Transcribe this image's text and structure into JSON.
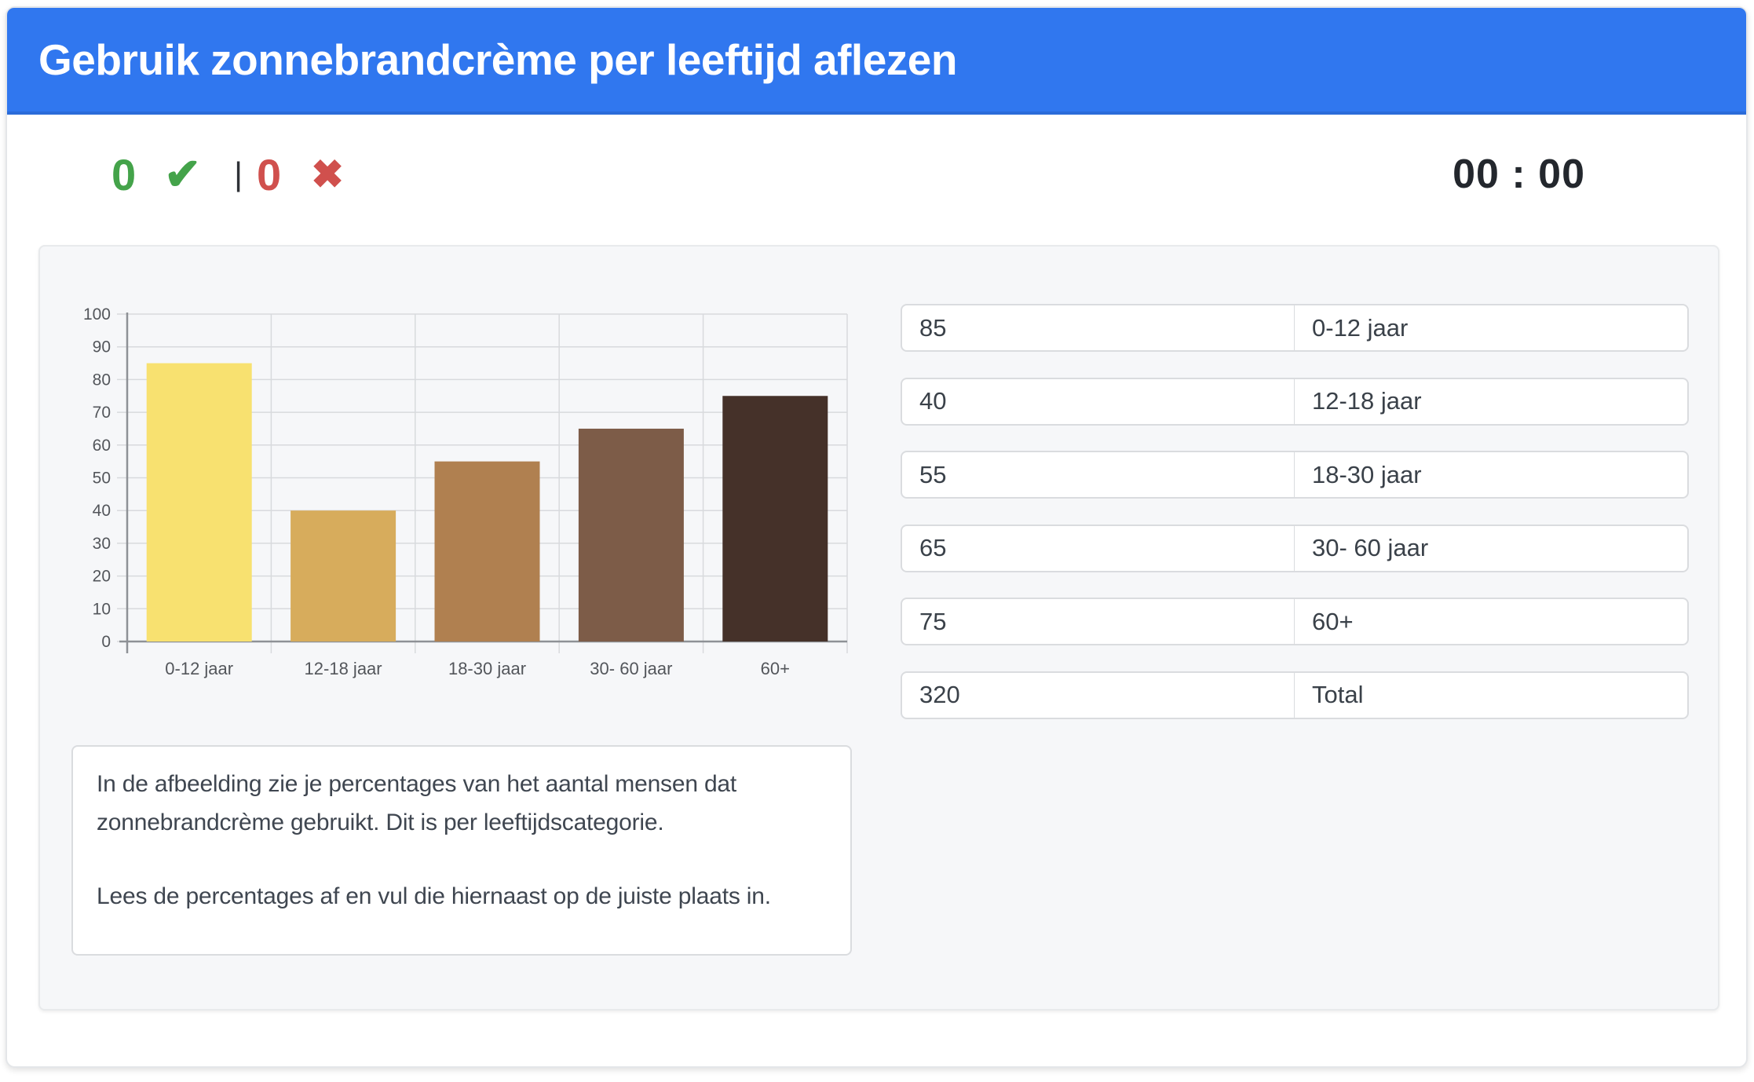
{
  "header": {
    "title": "Gebruik zonnebrandcrème per leeftijd aflezen"
  },
  "scoreboard": {
    "correct_count": "0",
    "incorrect_count": "0",
    "check_icon": "✔",
    "cross_icon": "✖",
    "separator": "|",
    "timer": "00 : 00"
  },
  "chart_data": {
    "type": "bar",
    "categories": [
      "0-12 jaar",
      "12-18 jaar",
      "18-30 jaar",
      "30- 60 jaar",
      "60+"
    ],
    "values": [
      85,
      40,
      55,
      65,
      75
    ],
    "bar_colors": [
      "#F8E170",
      "#D7AC5C",
      "#B08050",
      "#7D5C48",
      "#453129"
    ],
    "title": "",
    "xlabel": "",
    "ylabel": "",
    "ylim": [
      0,
      100
    ],
    "ytick_step": 10,
    "grid": true,
    "legend": false,
    "axis_color": "#8E9196",
    "grid_color": "#D8DADD",
    "tick_label_color": "#53565B"
  },
  "answers": {
    "rows": [
      {
        "value": "85",
        "label": "0-12 jaar"
      },
      {
        "value": "40",
        "label": "12-18 jaar"
      },
      {
        "value": "55",
        "label": "18-30 jaar"
      },
      {
        "value": "65",
        "label": "30- 60 jaar"
      },
      {
        "value": "75",
        "label": "60+"
      },
      {
        "value": "320",
        "label": "Total"
      }
    ]
  },
  "instructions": {
    "paragraph1": "In de afbeelding zie je percentages van het aantal mensen dat zonnebrandcrème gebruikt. Dit is per leeftijdscategorie.",
    "paragraph2": "Lees de percentages af en vul die hiernaast op de juiste plaats in."
  },
  "colors": {
    "header_blue": "#3077EF",
    "correct_green": "#44A34A",
    "incorrect_red": "#D0504D",
    "panel_bg": "#F6F7F9",
    "timer_text": "#23272D"
  }
}
